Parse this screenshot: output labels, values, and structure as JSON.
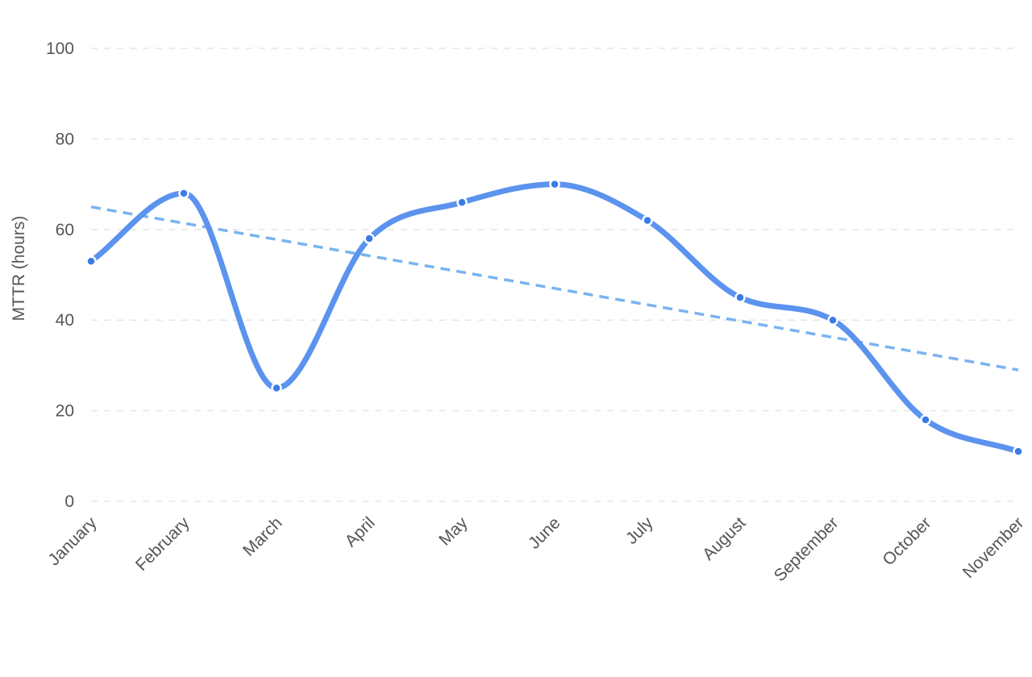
{
  "chart_data": {
    "type": "line",
    "categories": [
      "January",
      "February",
      "March",
      "April",
      "May",
      "June",
      "July",
      "August",
      "September",
      "October",
      "November"
    ],
    "series": [
      {
        "values": [
          53,
          68,
          25,
          58,
          66,
          70,
          62,
          45,
          40,
          18,
          11
        ],
        "color": "#5b93ee",
        "smooth": true,
        "markers": true
      },
      {
        "type": "trendline",
        "values": [
          65,
          61.4,
          57.8,
          54.2,
          50.6,
          47,
          43.4,
          39.8,
          36.2,
          32.6,
          29
        ],
        "color": "#7ab3f0",
        "dashed": true
      }
    ],
    "ylabel": "MTTR (hours)",
    "ylim": [
      0,
      100
    ],
    "yticks": [
      0,
      20,
      40,
      60,
      80,
      100
    ],
    "grid": true,
    "legend": "none"
  }
}
